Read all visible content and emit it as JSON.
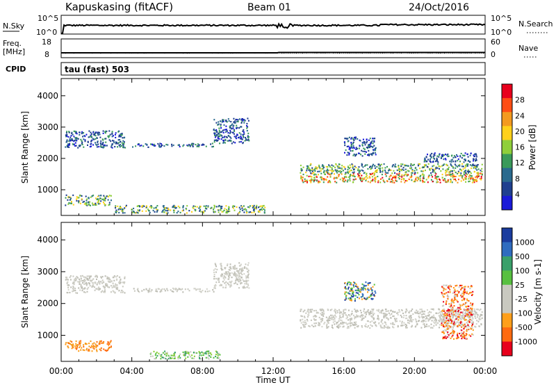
{
  "header": {
    "station": "Kapuskasing (fitACF)",
    "beam": "Beam 01",
    "date": "24/Oct/2016"
  },
  "strips": {
    "nsky_label": "N.Sky",
    "nsky_ticks": [
      "10^5",
      "10^0"
    ],
    "nsearch_label": "N.Search",
    "nsearch_ticks": [
      "10^5",
      "10^0"
    ],
    "freq_label": "Freq.",
    "freq_unit": "[MHz]",
    "freq_ticks": [
      "18",
      "8"
    ],
    "nave_label": "Nave",
    "nave_ticks": [
      "60",
      "0"
    ],
    "cpid_label": "CPID",
    "cpid_value": "tau (fast) 503"
  },
  "x_axis": {
    "label": "Time UT",
    "ticks": [
      "00:00",
      "04:00",
      "08:00",
      "12:00",
      "16:00",
      "20:00",
      "00:00"
    ]
  },
  "chart_data": [
    {
      "type": "heatmap",
      "name": "power",
      "ylabel": "Slant Range [km]",
      "yticks": [
        1000,
        2000,
        3000,
        4000
      ],
      "ylim": [
        180,
        4550
      ],
      "xlim_hours": [
        0,
        24
      ],
      "colorbar": {
        "label": "Power [dB]",
        "ticks": [
          "28",
          "24",
          "20",
          "16",
          "12",
          "8",
          "4"
        ],
        "colors": [
          "#e8001c",
          "#ff4d14",
          "#f39a1f",
          "#ffd11a",
          "#8fcf3a",
          "#3a9a5a",
          "#2a6a8e",
          "#1f3f8f",
          "#1a1ad8"
        ]
      },
      "echo_regions": [
        {
          "t0": 0.2,
          "t1": 3.6,
          "r0": 2350,
          "r1": 2900,
          "level": "weak"
        },
        {
          "t0": 4.0,
          "t1": 8.6,
          "r0": 2380,
          "r1": 2500,
          "level": "weak"
        },
        {
          "t0": 8.6,
          "t1": 10.6,
          "r0": 2500,
          "r1": 3300,
          "level": "weak"
        },
        {
          "t0": 13.5,
          "t1": 23.8,
          "r0": 1250,
          "r1": 1550,
          "level": "strong"
        },
        {
          "t0": 13.5,
          "t1": 23.8,
          "r0": 1550,
          "r1": 1850,
          "level": "moderate"
        },
        {
          "t0": 0.2,
          "t1": 2.8,
          "r0": 520,
          "r1": 850,
          "level": "moderate"
        },
        {
          "t0": 3.0,
          "t1": 11.5,
          "r0": 280,
          "r1": 520,
          "level": "moderate"
        },
        {
          "t0": 16.0,
          "t1": 17.8,
          "r0": 2100,
          "r1": 2700,
          "level": "weak"
        },
        {
          "t0": 20.5,
          "t1": 23.5,
          "r0": 1900,
          "r1": 2200,
          "level": "weak"
        }
      ]
    },
    {
      "type": "heatmap",
      "name": "velocity",
      "ylabel": "Slant Range [km]",
      "yticks": [
        1000,
        2000,
        3000,
        4000
      ],
      "ylim": [
        180,
        4550
      ],
      "xlim_hours": [
        0,
        24
      ],
      "colorbar": {
        "label": "Velocity [m s-1]",
        "ticks": [
          "1000",
          "500",
          "100",
          "25",
          "-25",
          "-100",
          "-500",
          "-1000"
        ],
        "colors": [
          "#1a3c9e",
          "#2f6cbf",
          "#3aa06a",
          "#58c040",
          "#c9c9c0",
          "#c9c9c0",
          "#ff9f1a",
          "#ff6a10",
          "#e8001c"
        ]
      },
      "echo_regions": [
        {
          "t0": 0.2,
          "t1": 3.6,
          "r0": 2350,
          "r1": 2900,
          "v": "grey"
        },
        {
          "t0": 4.0,
          "t1": 8.6,
          "r0": 2380,
          "r1": 2500,
          "v": "grey"
        },
        {
          "t0": 8.6,
          "t1": 10.6,
          "r0": 2500,
          "r1": 3300,
          "v": "grey"
        },
        {
          "t0": 13.5,
          "t1": 23.8,
          "r0": 1250,
          "r1": 1850,
          "v": "grey"
        },
        {
          "t0": 0.2,
          "t1": 2.8,
          "r0": 520,
          "r1": 850,
          "v": "orange"
        },
        {
          "t0": 5.0,
          "t1": 9.0,
          "r0": 280,
          "r1": 520,
          "v": "green"
        },
        {
          "t0": 16.0,
          "t1": 17.8,
          "r0": 2100,
          "r1": 2700,
          "v": "blue"
        },
        {
          "t0": 21.5,
          "t1": 23.3,
          "r0": 900,
          "r1": 2600,
          "v": "red"
        }
      ]
    }
  ]
}
